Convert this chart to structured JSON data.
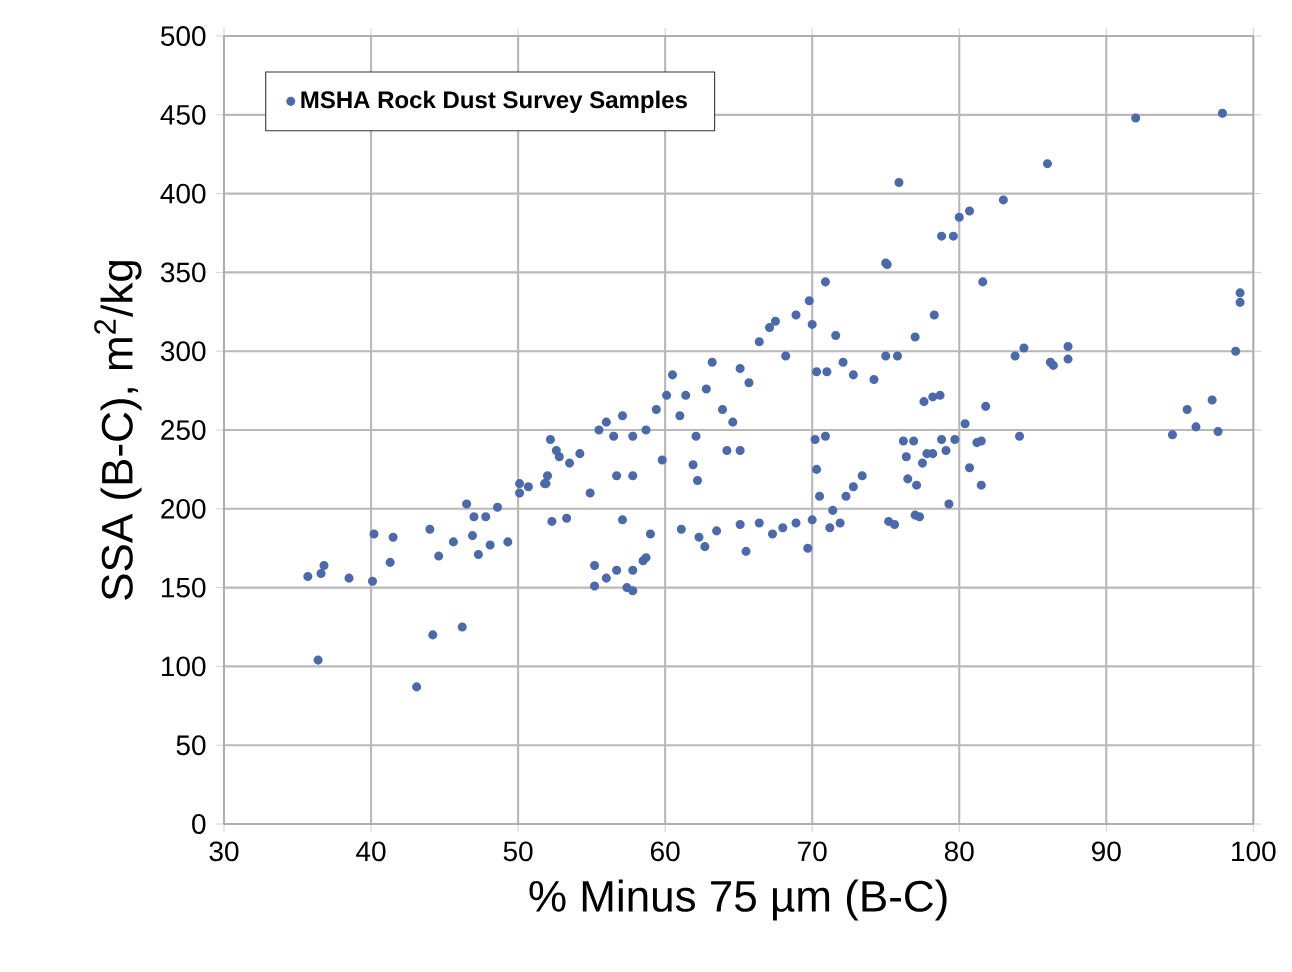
{
  "chart_data": {
    "type": "scatter",
    "xlabel": "% Minus 75 µm (B-C)",
    "ylabel": "SSA (B-C), m$^{2}$/kg",
    "xlim": [
      30,
      100
    ],
    "xticks": [
      30,
      40,
      50,
      60,
      70,
      80,
      90,
      100
    ],
    "ylim": [
      0,
      500
    ],
    "yticks": [
      0,
      50,
      100,
      150,
      200,
      250,
      300,
      350,
      400,
      450,
      500
    ],
    "grid": true,
    "legend": "top left",
    "series": [
      {
        "name": "MSHA Rock Dust Survey Samples",
        "color": "#4a6aab",
        "x": [
          35.7,
          36.6,
          36.8,
          36.4,
          38.5,
          40.1,
          40.2,
          41.3,
          41.5,
          44.0,
          44.6,
          44.2,
          43.1,
          46.2,
          45.6,
          46.5,
          46.9,
          47.3,
          47.0,
          47.8,
          48.1,
          48.6,
          49.3,
          50.1,
          50.1,
          50.7,
          51.8,
          52.0,
          52.2,
          52.6,
          52.3,
          51.9,
          52.8,
          53.5,
          54.2,
          54.9,
          55.5,
          56.0,
          56.5,
          57.1,
          57.8,
          58.7,
          59.4,
          60.1,
          60.5,
          61.0,
          61.4,
          62.1,
          62.8,
          63.2,
          63.9,
          64.6,
          65.1,
          65.7,
          66.4,
          67.1,
          67.5,
          68.2,
          68.9,
          69.8,
          70.9,
          70.0,
          70.3,
          71.0,
          71.6,
          72.1,
          72.8,
          75.0,
          75.0,
          70.9,
          70.2,
          65.1,
          64.2,
          61.9,
          62.2,
          59.8,
          57.8,
          56.7,
          53.3,
          57.1,
          59.0,
          58.7,
          58.5,
          57.8,
          57.4,
          57.8,
          56.7,
          56.0,
          55.2,
          55.2,
          61.1,
          62.3,
          62.7,
          63.5,
          65.1,
          65.5,
          66.4,
          67.3,
          68.0,
          68.9,
          69.7,
          70.0,
          70.3,
          70.5,
          71.2,
          71.4,
          71.9,
          72.3,
          72.8,
          73.4,
          75.9,
          75.1,
          78.8,
          79.6,
          80.0,
          80.7,
          83.0,
          86.0,
          92.0,
          97.9,
          81.6,
          78.3,
          77.0,
          75.8,
          74.2,
          77.6,
          78.2,
          78.7,
          80.4,
          81.8,
          83.8,
          84.4,
          86.2,
          86.4,
          87.4,
          87.4,
          84.1,
          81.5,
          81.2,
          79.7,
          79.1,
          78.8,
          78.2,
          77.8,
          77.5,
          76.9,
          76.4,
          76.2,
          76.5,
          77.1,
          80.7,
          81.5,
          79.3,
          77.0,
          77.3,
          75.2,
          75.6,
          99.1,
          99.1,
          98.8,
          97.2,
          95.5,
          96.1,
          94.5,
          97.6
        ],
        "values": [
          157,
          159,
          164,
          104,
          156,
          154,
          184,
          166,
          182,
          187,
          170,
          120,
          87,
          125,
          179,
          203,
          183,
          171,
          195,
          195,
          177,
          201,
          179,
          216,
          210,
          214,
          216,
          221,
          244,
          237,
          192,
          216,
          233,
          229,
          235,
          210,
          250,
          255,
          246,
          259,
          246,
          250,
          263,
          272,
          285,
          259,
          272,
          246,
          276,
          293,
          263,
          255,
          289,
          280,
          306,
          315,
          319,
          297,
          323,
          332,
          344,
          317,
          287,
          287,
          310,
          293,
          285,
          356,
          297,
          246,
          244,
          237,
          237,
          228,
          218,
          231,
          221,
          221,
          194,
          193,
          184,
          169,
          167,
          161,
          150,
          148,
          161,
          156,
          164,
          151,
          187,
          182,
          176,
          186,
          190,
          173,
          191,
          184,
          188,
          191,
          175,
          193,
          225,
          208,
          188,
          199,
          191,
          208,
          214,
          221,
          407,
          355,
          373,
          373,
          385,
          389,
          396,
          419,
          448,
          451,
          344,
          323,
          309,
          297,
          282,
          268,
          271,
          272,
          254,
          265,
          297,
          302,
          293,
          291,
          303,
          295,
          246,
          243,
          242,
          244,
          237,
          244,
          235,
          235,
          229,
          243,
          233,
          243,
          219,
          215,
          226,
          215,
          203,
          196,
          195,
          192,
          190,
          337,
          331,
          300,
          269,
          263,
          252,
          247,
          249
        ]
      }
    ]
  }
}
